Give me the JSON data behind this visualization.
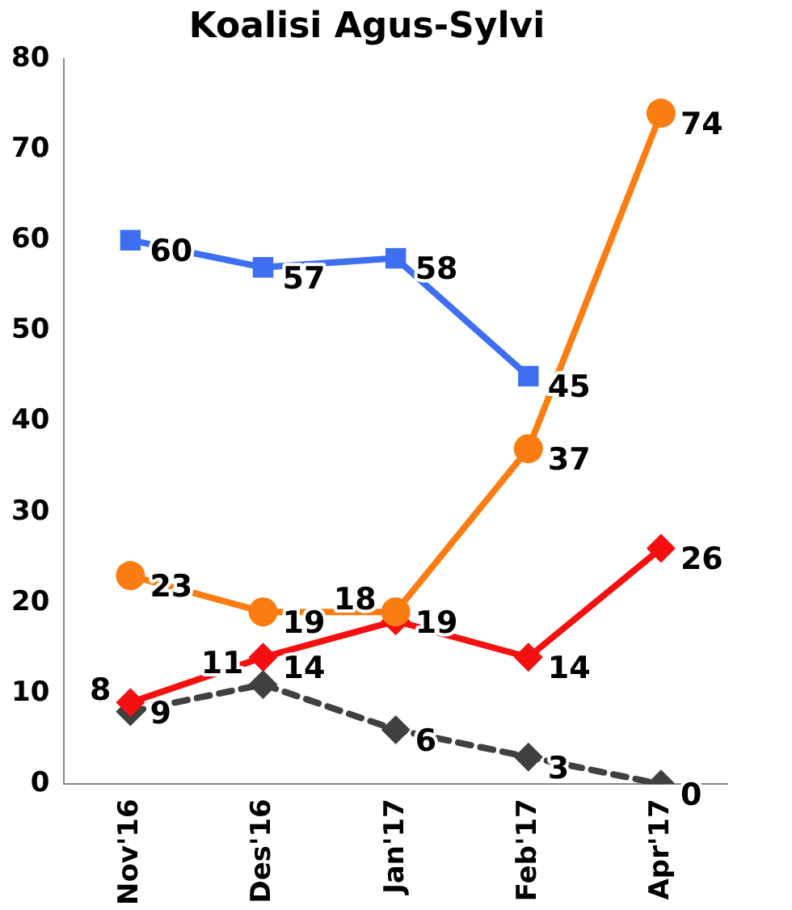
{
  "chart_data": {
    "type": "line",
    "title": "Koalisi Agus-Sylvi",
    "categories": [
      "Nov'16",
      "Des'16",
      "Jan'17",
      "Feb'17",
      "Apr'17"
    ],
    "series": [
      {
        "color": "#3d6ff0",
        "marker": "square",
        "values": [
          60,
          57,
          58,
          45,
          null
        ]
      },
      {
        "color": "#fb7d12",
        "marker": "circle",
        "values": [
          23,
          19,
          19,
          37,
          74
        ]
      },
      {
        "color": "#f41010",
        "marker": "diamond",
        "values": [
          9,
          14,
          18,
          14,
          26
        ]
      },
      {
        "color": "#404040",
        "marker": "diamond",
        "line_style": "dashed",
        "values": [
          8,
          11,
          6,
          3,
          0
        ]
      }
    ],
    "ylim": [
      0,
      80
    ],
    "yticks": [
      0,
      10,
      20,
      30,
      40,
      50,
      60,
      70,
      80
    ],
    "grid": false,
    "legend": false,
    "data_labels": true
  }
}
